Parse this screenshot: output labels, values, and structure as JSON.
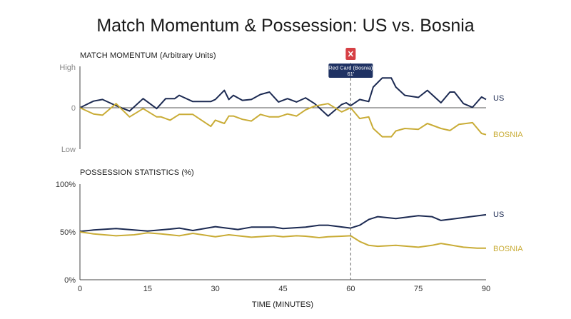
{
  "title": "Match Momentum & Possession: US vs. Bosnia",
  "colors": {
    "us": "#1c2a52",
    "bosnia": "#c9ac36",
    "axis": "#444444",
    "zero": "#555555",
    "marker": "#d64045",
    "annotation_bg": "#1f3263"
  },
  "chart_data": [
    {
      "type": "line",
      "panel": "momentum",
      "title": "MATCH MOMENTUM (Arbitrary Units)",
      "ylim": [
        -1,
        1
      ],
      "yticks": [
        {
          "value": 1,
          "label": "High"
        },
        {
          "value": 0,
          "label": "0"
        },
        {
          "value": -1,
          "label": "Low"
        }
      ],
      "series": [
        {
          "name": "US",
          "color": "#1c2a52",
          "x": [
            0,
            3,
            5,
            8,
            11,
            14,
            17,
            19,
            21,
            22,
            25,
            29,
            30,
            32,
            33,
            34,
            36,
            38,
            40,
            42,
            44,
            46,
            48,
            50,
            52,
            55,
            58,
            59,
            60,
            62,
            64,
            65,
            67,
            69,
            70,
            72,
            75,
            77,
            80,
            82,
            83,
            85,
            87,
            89,
            90
          ],
          "y": [
            0,
            0.16,
            0.2,
            0.05,
            -0.08,
            0.22,
            -0.02,
            0.22,
            0.22,
            0.3,
            0.15,
            0.15,
            0.2,
            0.42,
            0.2,
            0.3,
            0.18,
            0.2,
            0.32,
            0.38,
            0.14,
            0.22,
            0.14,
            0.24,
            0.1,
            -0.2,
            0.08,
            0.12,
            0.05,
            0.2,
            0.15,
            0.5,
            0.72,
            0.72,
            0.5,
            0.3,
            0.25,
            0.42,
            0.12,
            0.38,
            0.38,
            0.1,
            0.01,
            0.26,
            0.2
          ]
        },
        {
          "name": "BOSNIA",
          "color": "#c9ac36",
          "x": [
            0,
            3,
            5,
            8,
            11,
            14,
            17,
            18,
            20,
            22,
            25,
            29,
            30,
            32,
            33,
            34,
            36,
            38,
            40,
            42,
            44,
            46,
            48,
            50,
            52,
            55,
            58,
            60,
            62,
            64,
            65,
            67,
            69,
            70,
            72,
            75,
            77,
            80,
            82,
            84,
            87,
            89,
            90
          ],
          "y": [
            0,
            -0.15,
            -0.18,
            0.1,
            -0.22,
            -0.02,
            -0.22,
            -0.22,
            -0.3,
            -0.16,
            -0.16,
            -0.45,
            -0.3,
            -0.38,
            -0.2,
            -0.2,
            -0.28,
            -0.32,
            -0.16,
            -0.22,
            -0.22,
            -0.15,
            -0.2,
            -0.05,
            0.04,
            0.1,
            -0.1,
            0,
            -0.26,
            -0.22,
            -0.5,
            -0.7,
            -0.7,
            -0.56,
            -0.5,
            -0.52,
            -0.38,
            -0.5,
            -0.55,
            -0.4,
            -0.36,
            -0.62,
            -0.65
          ]
        }
      ]
    },
    {
      "type": "line",
      "panel": "possession",
      "title": "POSSESSION STATISTICS (%)",
      "xlabel": "TIME (MINUTES)",
      "xlim": [
        0,
        90
      ],
      "xticks": [
        0,
        15,
        30,
        45,
        60,
        75,
        90
      ],
      "ylim": [
        0,
        100
      ],
      "yticks": [
        {
          "value": 100,
          "label": "100%"
        },
        {
          "value": 50,
          "label": "50%"
        },
        {
          "value": 0,
          "label": "0%"
        }
      ],
      "series": [
        {
          "name": "US",
          "color": "#1c2a52",
          "x": [
            0,
            3,
            8,
            12,
            15,
            20,
            22,
            25,
            30,
            35,
            38,
            43,
            45,
            50,
            53,
            55,
            60,
            62,
            64,
            66,
            70,
            75,
            78,
            80,
            85,
            90
          ],
          "y": [
            50.5,
            52,
            53.5,
            52,
            51,
            53,
            54,
            51.5,
            55.5,
            52.5,
            55,
            55,
            53.5,
            55,
            57,
            57,
            54,
            57,
            63,
            66,
            64,
            67,
            66,
            62,
            65,
            68
          ]
        },
        {
          "name": "BOSNIA",
          "color": "#c9ac36",
          "x": [
            0,
            3,
            8,
            12,
            15,
            18,
            22,
            25,
            30,
            33,
            38,
            43,
            45,
            48,
            50,
            53,
            55,
            58,
            60,
            62,
            64,
            66,
            70,
            75,
            78,
            80,
            85,
            88,
            90
          ],
          "y": [
            50,
            48,
            46,
            47,
            49,
            48,
            46,
            48.5,
            45,
            47,
            44.5,
            46,
            45,
            46,
            45.5,
            44,
            45,
            45.5,
            46,
            40,
            36,
            35,
            36,
            34,
            36,
            38,
            34,
            33,
            33
          ]
        }
      ]
    }
  ],
  "event": {
    "minute": 60,
    "label": "Red Card (Bosnia)",
    "minute_label": "61'",
    "icon": "red-card-x-icon"
  }
}
